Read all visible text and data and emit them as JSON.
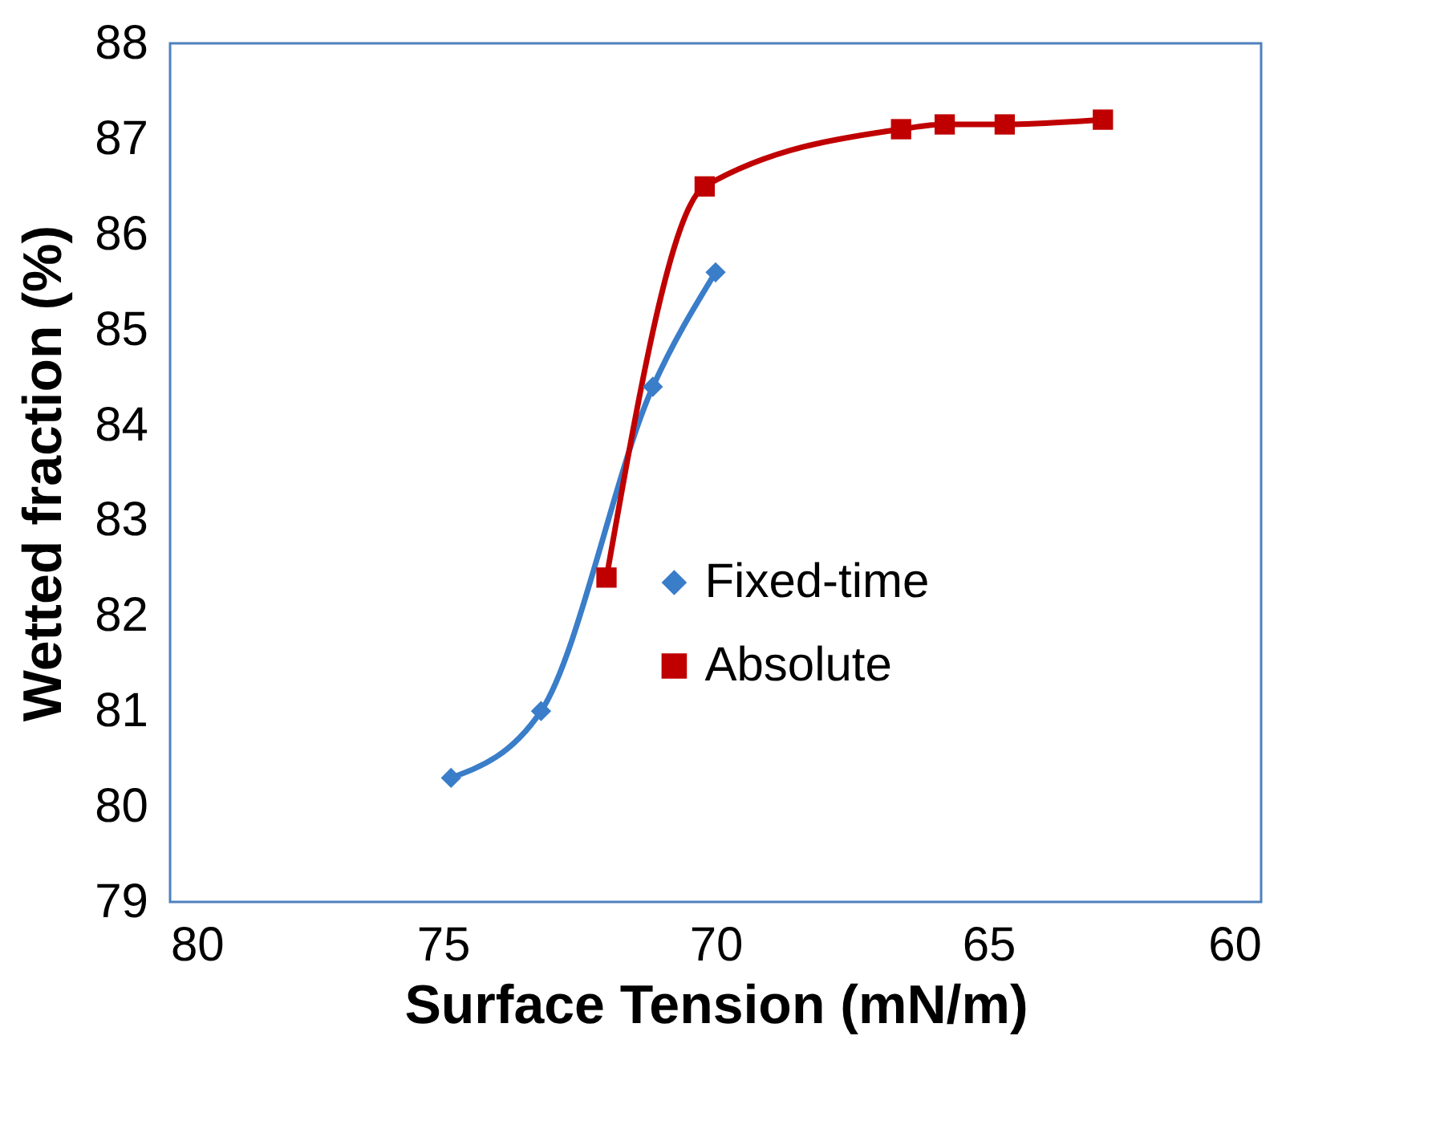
{
  "chart_data": {
    "type": "line",
    "xlabel": "Surface Tension (mN/m)",
    "ylabel": "Wetted fraction (%)",
    "xlim": [
      80,
      60
    ],
    "xticks": [
      80,
      75,
      70,
      65,
      60
    ],
    "ylim": [
      79,
      88
    ],
    "yticks": [
      79,
      80,
      81,
      82,
      83,
      84,
      85,
      86,
      87,
      88
    ],
    "grid": false,
    "legend": "right",
    "line_style": "solid",
    "series": [
      {
        "name": "Fixed-time",
        "color": "#3a7dc9",
        "marker": "diamond",
        "x": [
          74.85,
          73.2,
          71.15,
          70.0
        ],
        "values": [
          80.3,
          81.0,
          84.4,
          85.6
        ]
      },
      {
        "name": "Absolute",
        "color": "#c00000",
        "marker": "square",
        "x": [
          72.0,
          70.2,
          66.6,
          65.8,
          64.7,
          62.9
        ],
        "values": [
          82.4,
          86.5,
          87.1,
          87.15,
          87.15,
          87.2
        ]
      }
    ]
  }
}
